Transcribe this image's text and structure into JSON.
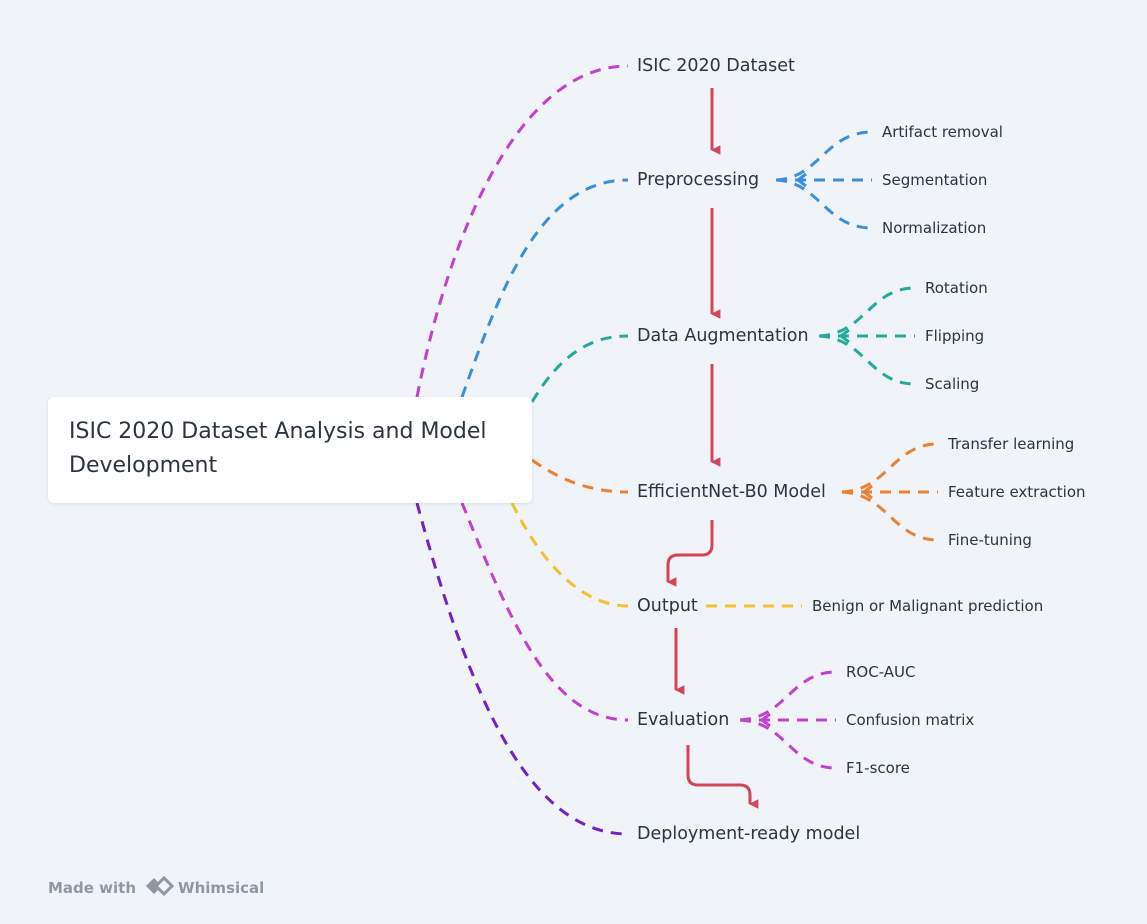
{
  "root": {
    "title_line1": "ISIC 2020 Dataset Analysis and Model",
    "title_line2": "Development"
  },
  "nodes": {
    "dataset": "ISIC 2020 Dataset",
    "preprocessing": "Preprocessing",
    "augmentation": "Data Augmentation",
    "model": "EfficientNet-B0 Model",
    "output": "Output",
    "evaluation": "Evaluation",
    "deployment": "Deployment-ready model"
  },
  "leaves": {
    "preprocessing": [
      "Artifact removal",
      "Segmentation",
      "Normalization"
    ],
    "augmentation": [
      "Rotation",
      "Flipping",
      "Scaling"
    ],
    "model": [
      "Transfer learning",
      "Feature extraction",
      "Fine-tuning"
    ],
    "output": [
      "Benign or Malignant prediction"
    ],
    "evaluation": [
      "ROC-AUC",
      "Confusion matrix",
      "F1-score"
    ]
  },
  "colors": {
    "dataset": "#c23fd0",
    "preprocessing": "#3a8fdc",
    "augmentation": "#22ab98",
    "model": "#ea8133",
    "output": "#f2c12e",
    "evaluation": "#c23fd0",
    "deployment": "#7321c6",
    "flow_arrow": "#d2455a"
  },
  "footer": {
    "made_with": "Made with",
    "brand": "Whimsical",
    "logo_icon": "whimsical-logo-icon"
  }
}
